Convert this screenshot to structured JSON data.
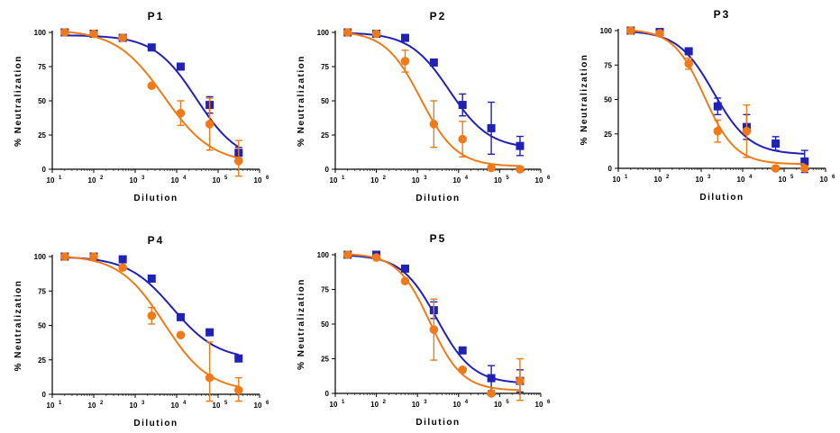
{
  "colors": {
    "series_blue": "#1f22b4",
    "series_orange": "#f07a1a",
    "axis": "#000000"
  },
  "chart_data": [
    {
      "type": "scatter",
      "title": "P1",
      "xlabel": "Dilution",
      "ylabel": "% Neutralization",
      "x_scale": "log",
      "xlim": [
        10,
        1000000
      ],
      "ylim": [
        0,
        100
      ],
      "y_ticks": [
        0,
        25,
        50,
        75,
        100
      ],
      "x_tick_labels": [
        "10",
        "10",
        "10",
        "10",
        "10",
        "10"
      ],
      "x_tick_exponents": [
        "1",
        "2",
        "3",
        "4",
        "5",
        "6"
      ],
      "series": [
        {
          "marker": "square",
          "color": "#1f22b4",
          "x": [
            20,
            100,
            500,
            2500,
            12500,
            62500,
            312500
          ],
          "y": [
            100,
            99,
            96,
            89,
            75,
            47,
            12
          ],
          "err": [
            0,
            0,
            1,
            1,
            2,
            6,
            4
          ],
          "fit": {
            "top": 98,
            "bottom": 5,
            "ec50": 30000,
            "hill": 0.85
          }
        },
        {
          "marker": "circle",
          "color": "#f07a1a",
          "x": [
            20,
            100,
            500,
            2500,
            12500,
            62500,
            312500
          ],
          "y": [
            100,
            99,
            96,
            61,
            41,
            33,
            6
          ],
          "err": [
            0,
            0,
            0,
            1,
            9,
            19,
            15
          ],
          "fit": {
            "top": 102,
            "bottom": 4,
            "ec50": 5000,
            "hill": 0.75
          }
        }
      ]
    },
    {
      "type": "scatter",
      "title": "P2",
      "xlabel": "Dilution",
      "ylabel": "% Neutralization",
      "x_scale": "log",
      "xlim": [
        10,
        1000000
      ],
      "ylim": [
        0,
        100
      ],
      "y_ticks": [
        0,
        25,
        50,
        75,
        100
      ],
      "x_tick_labels": [
        "10",
        "10",
        "10",
        "10",
        "10",
        "10"
      ],
      "x_tick_exponents": [
        "1",
        "2",
        "3",
        "4",
        "5",
        "6"
      ],
      "series": [
        {
          "marker": "square",
          "color": "#1f22b4",
          "x": [
            20,
            100,
            500,
            2500,
            12500,
            62500,
            312500
          ],
          "y": [
            100,
            99,
            96,
            78,
            47,
            30,
            17
          ],
          "err": [
            0,
            0,
            1,
            1,
            8,
            19,
            7
          ],
          "fit": {
            "top": 100,
            "bottom": 15,
            "ec50": 6000,
            "hill": 0.9
          }
        },
        {
          "marker": "circle",
          "color": "#f07a1a",
          "x": [
            20,
            100,
            500,
            2500,
            12500,
            62500,
            312500
          ],
          "y": [
            100,
            99,
            79,
            33,
            22,
            1,
            0
          ],
          "err": [
            0,
            0,
            8,
            17,
            13,
            1,
            0
          ],
          "fit": {
            "top": 101,
            "bottom": 2,
            "ec50": 1200,
            "hill": 1.0
          }
        }
      ]
    },
    {
      "type": "scatter",
      "title": "P3",
      "xlabel": "Dilution",
      "ylabel": "% Neutralization",
      "x_scale": "log",
      "xlim": [
        10,
        1000000
      ],
      "ylim": [
        0,
        100
      ],
      "y_ticks": [
        0,
        25,
        50,
        75,
        100
      ],
      "x_tick_labels": [
        "10",
        "10",
        "10",
        "10",
        "10",
        "10"
      ],
      "x_tick_exponents": [
        "1",
        "2",
        "3",
        "4",
        "5",
        "6"
      ],
      "series": [
        {
          "marker": "square",
          "color": "#1f22b4",
          "x": [
            20,
            100,
            500,
            2500,
            12500,
            62500,
            312500
          ],
          "y": [
            100,
            99,
            85,
            45,
            30,
            18,
            5
          ],
          "err": [
            0,
            0,
            2,
            6,
            9,
            5,
            8
          ],
          "fit": {
            "top": 100,
            "bottom": 10,
            "ec50": 2000,
            "hill": 1.0
          }
        },
        {
          "marker": "circle",
          "color": "#f07a1a",
          "x": [
            20,
            100,
            500,
            2500,
            12500,
            62500,
            312500
          ],
          "y": [
            100,
            98,
            76,
            27,
            27,
            0,
            0
          ],
          "err": [
            0,
            0,
            4,
            8,
            19,
            0,
            0
          ],
          "fit": {
            "top": 101,
            "bottom": 3,
            "ec50": 1200,
            "hill": 1.15
          }
        }
      ]
    },
    {
      "type": "scatter",
      "title": "P4",
      "xlabel": "Dilution",
      "ylabel": "% Neutralization",
      "x_scale": "log",
      "xlim": [
        10,
        1000000
      ],
      "ylim": [
        0,
        100
      ],
      "y_ticks": [
        0,
        25,
        50,
        75,
        100
      ],
      "x_tick_labels": [
        "10",
        "10",
        "10",
        "10",
        "10",
        "10"
      ],
      "x_tick_exponents": [
        "1",
        "2",
        "3",
        "4",
        "5",
        "6"
      ],
      "series": [
        {
          "marker": "square",
          "color": "#1f22b4",
          "x": [
            20,
            100,
            500,
            2500,
            12500,
            62500,
            312500
          ],
          "y": [
            100,
            100,
            98,
            84,
            56,
            45,
            26
          ],
          "err": [
            0,
            0,
            1,
            1,
            1,
            1,
            1
          ],
          "fit": {
            "top": 100,
            "bottom": 25,
            "ec50": 8000,
            "hill": 0.8
          }
        },
        {
          "marker": "circle",
          "color": "#f07a1a",
          "x": [
            20,
            100,
            500,
            2500,
            12500,
            62500,
            312500
          ],
          "y": [
            100,
            100,
            92,
            57,
            43,
            12,
            3
          ],
          "err": [
            0,
            0,
            1,
            6,
            1,
            26,
            9
          ],
          "fit": {
            "top": 101,
            "bottom": 2,
            "ec50": 5000,
            "hill": 0.8
          }
        }
      ]
    },
    {
      "type": "scatter",
      "title": "P5",
      "xlabel": "Dilution",
      "ylabel": "% Neutralization",
      "x_scale": "log",
      "xlim": [
        10,
        1000000
      ],
      "ylim": [
        0,
        100
      ],
      "y_ticks": [
        0,
        25,
        50,
        75,
        100
      ],
      "x_tick_labels": [
        "10",
        "10",
        "10",
        "10",
        "10",
        "10"
      ],
      "x_tick_exponents": [
        "1",
        "2",
        "3",
        "4",
        "5",
        "6"
      ],
      "series": [
        {
          "marker": "square",
          "color": "#1f22b4",
          "x": [
            20,
            100,
            500,
            2500,
            12500,
            62500,
            312500
          ],
          "y": [
            100,
            100,
            90,
            60,
            31,
            11,
            9
          ],
          "err": [
            0,
            0,
            1,
            6,
            1,
            9,
            8
          ],
          "fit": {
            "top": 100,
            "bottom": 7,
            "ec50": 3000,
            "hill": 1.0
          }
        },
        {
          "marker": "circle",
          "color": "#f07a1a",
          "x": [
            20,
            100,
            500,
            2500,
            12500,
            62500,
            312500
          ],
          "y": [
            100,
            98,
            81,
            46,
            17,
            0,
            9
          ],
          "err": [
            0,
            0,
            1,
            22,
            1,
            0,
            16
          ],
          "fit": {
            "top": 101,
            "bottom": 2,
            "ec50": 2000,
            "hill": 1.1
          }
        }
      ]
    }
  ]
}
